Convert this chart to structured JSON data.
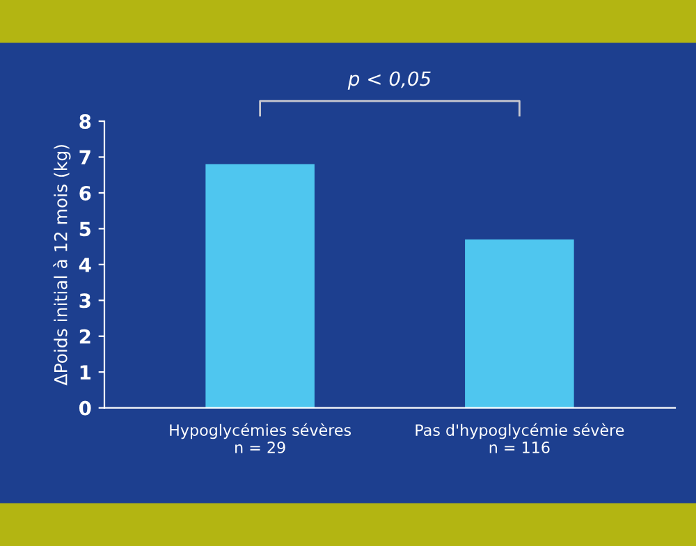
{
  "chart_data": {
    "type": "bar",
    "categories": [
      "Hypoglycémies sévères\nn = 29",
      "Pas d'hypoglycémie sévère\nn = 116"
    ],
    "values": [
      6.8,
      4.7
    ],
    "color": "#4fc6ef",
    "ylabel": "ΔPoids initial à 12 mois (kg)",
    "ylim": [
      0,
      8
    ],
    "yticks": [
      0,
      1,
      2,
      3,
      4,
      5,
      6,
      7,
      8
    ],
    "grid": false,
    "annotations": [
      "p < 0,05"
    ]
  }
}
